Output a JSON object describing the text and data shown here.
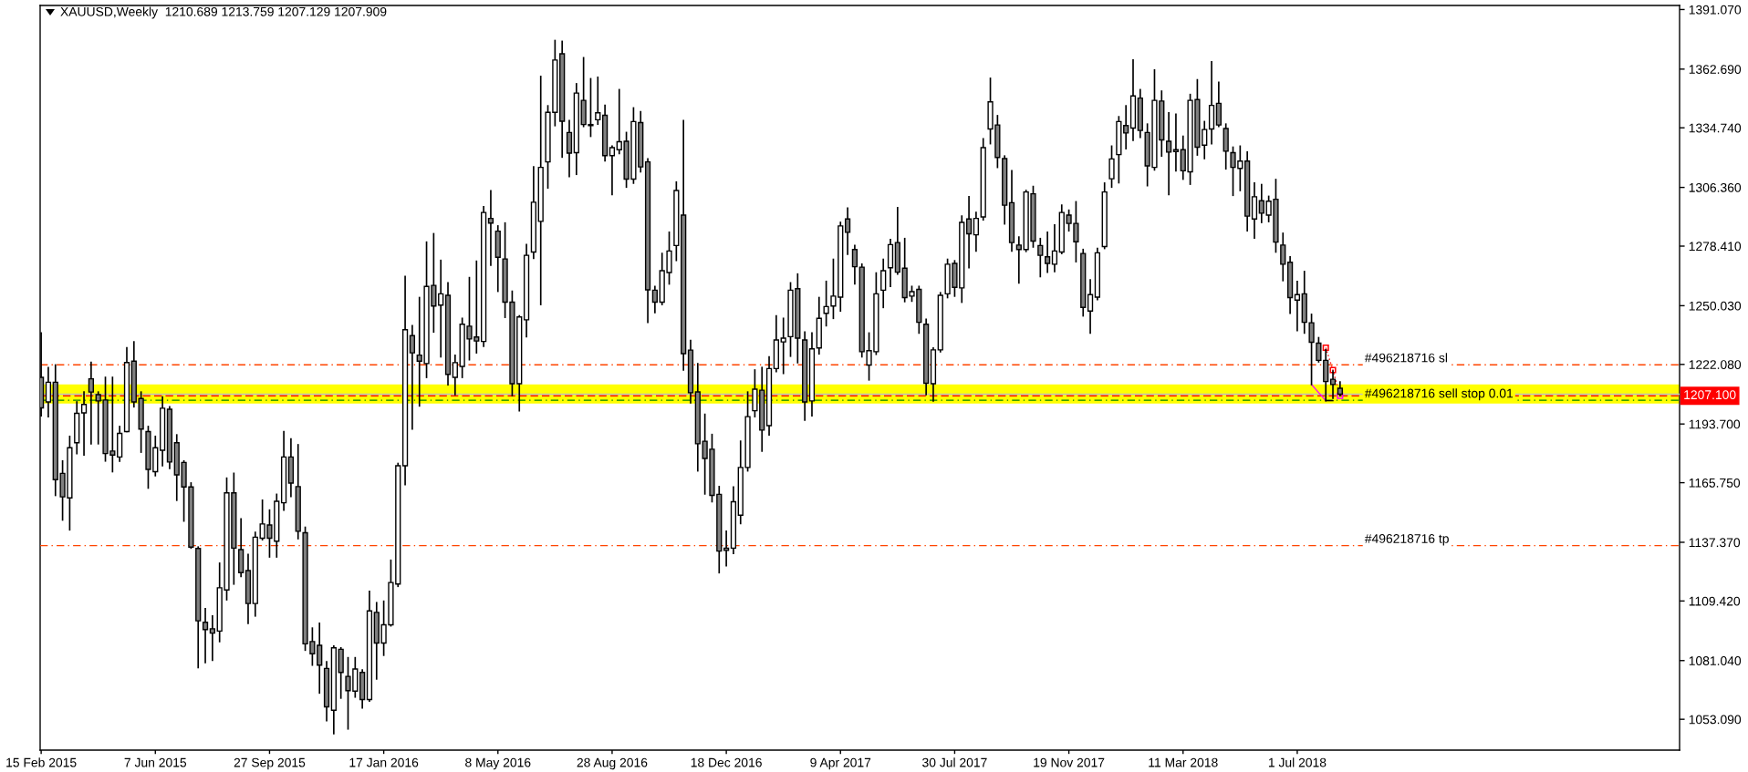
{
  "chart_data": {
    "type": "candlestick",
    "title": "XAUUSD,Weekly  1210.689 1213.759 1207.129 1207.909",
    "x": [
      "2015-02-15",
      "2015-02-22",
      "2015-03-01",
      "2015-03-08",
      "2015-03-15",
      "2015-03-22",
      "2015-03-29",
      "2015-04-05",
      "2015-04-12",
      "2015-04-19",
      "2015-04-26",
      "2015-05-03",
      "2015-05-10",
      "2015-05-17",
      "2015-05-24",
      "2015-05-31",
      "2015-06-07",
      "2015-06-14",
      "2015-06-21",
      "2015-06-28",
      "2015-07-05",
      "2015-07-12",
      "2015-07-19",
      "2015-07-26",
      "2015-08-02",
      "2015-08-09",
      "2015-08-16",
      "2015-08-23",
      "2015-08-30",
      "2015-09-06",
      "2015-09-13",
      "2015-09-20",
      "2015-09-27",
      "2015-10-04",
      "2015-10-11",
      "2015-10-18",
      "2015-10-25",
      "2015-11-01",
      "2015-11-08",
      "2015-11-15",
      "2015-11-22",
      "2015-11-29",
      "2015-12-06",
      "2015-12-13",
      "2015-12-20",
      "2015-12-27",
      "2016-01-03",
      "2016-01-10",
      "2016-01-17",
      "2016-01-24",
      "2016-01-31",
      "2016-02-07",
      "2016-02-14",
      "2016-02-21",
      "2016-02-28",
      "2016-03-06",
      "2016-03-13",
      "2016-03-20",
      "2016-03-27",
      "2016-04-03",
      "2016-04-10",
      "2016-04-17",
      "2016-04-24",
      "2016-05-01",
      "2016-05-08",
      "2016-05-15",
      "2016-05-22",
      "2016-05-29",
      "2016-06-05",
      "2016-06-12",
      "2016-06-19",
      "2016-06-26",
      "2016-07-03",
      "2016-07-10",
      "2016-07-17",
      "2016-07-24",
      "2016-07-31",
      "2016-08-07",
      "2016-08-14",
      "2016-08-21",
      "2016-08-28",
      "2016-09-04",
      "2016-09-11",
      "2016-09-18",
      "2016-09-25",
      "2016-10-02",
      "2016-10-09",
      "2016-10-16",
      "2016-10-23",
      "2016-10-30",
      "2016-11-06",
      "2016-11-13",
      "2016-11-20",
      "2016-11-27",
      "2016-12-04",
      "2016-12-11",
      "2016-12-18",
      "2016-12-25",
      "2017-01-01",
      "2017-01-08",
      "2017-01-15",
      "2017-01-22",
      "2017-01-29",
      "2017-02-05",
      "2017-02-12",
      "2017-02-19",
      "2017-02-26",
      "2017-03-05",
      "2017-03-12",
      "2017-03-19",
      "2017-03-26",
      "2017-04-02",
      "2017-04-09",
      "2017-04-16",
      "2017-04-23",
      "2017-04-30",
      "2017-05-07",
      "2017-05-14",
      "2017-05-21",
      "2017-05-28",
      "2017-06-04",
      "2017-06-11",
      "2017-06-18",
      "2017-06-25",
      "2017-07-02",
      "2017-07-09",
      "2017-07-16",
      "2017-07-23",
      "2017-07-30",
      "2017-08-06",
      "2017-08-13",
      "2017-08-20",
      "2017-08-27",
      "2017-09-03",
      "2017-09-10",
      "2017-09-17",
      "2017-09-24",
      "2017-10-01",
      "2017-10-08",
      "2017-10-15",
      "2017-10-22",
      "2017-10-29",
      "2017-11-05",
      "2017-11-12",
      "2017-11-19",
      "2017-11-26",
      "2017-12-03",
      "2017-12-10",
      "2017-12-17",
      "2017-12-24",
      "2017-12-31",
      "2018-01-07",
      "2018-01-14",
      "2018-01-21",
      "2018-01-28",
      "2018-02-04",
      "2018-02-11",
      "2018-02-18",
      "2018-02-25",
      "2018-03-04",
      "2018-03-11",
      "2018-03-18",
      "2018-03-25",
      "2018-04-01",
      "2018-04-08",
      "2018-04-15",
      "2018-04-22",
      "2018-04-29",
      "2018-05-06",
      "2018-05-13",
      "2018-05-20",
      "2018-05-27",
      "2018-06-03",
      "2018-06-10",
      "2018-06-17",
      "2018-06-24",
      "2018-07-01",
      "2018-07-08",
      "2018-07-15",
      "2018-07-22",
      "2018-07-29",
      "2018-08-05",
      "2018-08-12"
    ],
    "ohlc": [
      [
        1215.9,
        1237.0,
        1197.6,
        1201.4
      ],
      [
        1204.2,
        1220.6,
        1197.2,
        1213.6
      ],
      [
        1213.6,
        1221.8,
        1159.7,
        1167.2
      ],
      [
        1170.2,
        1176.1,
        1148.0,
        1159.0
      ],
      [
        1158.5,
        1187.8,
        1143.3,
        1182.4
      ],
      [
        1184.8,
        1204.2,
        1179.6,
        1198.8
      ],
      [
        1199.0,
        1208.9,
        1178.9,
        1203.0
      ],
      [
        1215.2,
        1223.0,
        1184.3,
        1208.9
      ],
      [
        1207.7,
        1208.9,
        1184.3,
        1204.7
      ],
      [
        1205.1,
        1215.9,
        1176.1,
        1179.6
      ],
      [
        1180.8,
        1215.9,
        1171.0,
        1178.9
      ],
      [
        1178.0,
        1192.5,
        1176.0,
        1189.2
      ],
      [
        1190.1,
        1230.0,
        1190.1,
        1223.0
      ],
      [
        1223.6,
        1232.8,
        1201.9,
        1204.2
      ],
      [
        1205.8,
        1208.9,
        1180.3,
        1191.3
      ],
      [
        1190.1,
        1192.5,
        1163.2,
        1172.1
      ],
      [
        1171.0,
        1187.8,
        1169.1,
        1182.4
      ],
      [
        1181.2,
        1206.5,
        1173.8,
        1201.2
      ],
      [
        1200.7,
        1201.9,
        1172.6,
        1175.6
      ],
      [
        1184.8,
        1188.5,
        1157.4,
        1169.5
      ],
      [
        1175.4,
        1176.1,
        1147.5,
        1163.7
      ],
      [
        1163.7,
        1165.6,
        1134.6,
        1135.1
      ],
      [
        1134.4,
        1135.1,
        1077.7,
        1100.0
      ],
      [
        1099.3,
        1105.8,
        1080.1,
        1095.8
      ],
      [
        1096.2,
        1102.3,
        1081.2,
        1094.1
      ],
      [
        1095.1,
        1127.4,
        1090.1,
        1115.7
      ],
      [
        1114.7,
        1167.9,
        1110.0,
        1160.9
      ],
      [
        1160.9,
        1170.2,
        1117.5,
        1134.6
      ],
      [
        1133.9,
        1148.5,
        1121.1,
        1122.9
      ],
      [
        1123.9,
        1131.6,
        1098.8,
        1108.2
      ],
      [
        1108.2,
        1142.1,
        1102.3,
        1139.8
      ],
      [
        1139.3,
        1157.4,
        1138.6,
        1146.1
      ],
      [
        1145.6,
        1152.7,
        1130.4,
        1139.3
      ],
      [
        1137.9,
        1160.2,
        1130.4,
        1156.9
      ],
      [
        1156.2,
        1190.1,
        1152.7,
        1178.0
      ],
      [
        1178.0,
        1186.6,
        1159.2,
        1165.6
      ],
      [
        1163.9,
        1183.8,
        1139.1,
        1142.6
      ],
      [
        1141.9,
        1144.5,
        1086.0,
        1089.0
      ],
      [
        1090.1,
        1096.5,
        1078.9,
        1084.3
      ],
      [
        1088.3,
        1098.8,
        1065.6,
        1078.9
      ],
      [
        1077.3,
        1080.5,
        1052.4,
        1059.0
      ],
      [
        1057.4,
        1088.0,
        1046.3,
        1087.1
      ],
      [
        1086.4,
        1087.1,
        1063.2,
        1075.4
      ],
      [
        1073.5,
        1082.4,
        1048.5,
        1066.7
      ],
      [
        1066.5,
        1082.4,
        1063.7,
        1077.0
      ],
      [
        1075.4,
        1076.6,
        1058.5,
        1062.5
      ],
      [
        1062.5,
        1114.0,
        1061.8,
        1104.7
      ],
      [
        1104.0,
        1108.6,
        1072.3,
        1089.4
      ],
      [
        1089.4,
        1109.3,
        1083.6,
        1098.1
      ],
      [
        1098.1,
        1128.8,
        1097.6,
        1118.2
      ],
      [
        1117.5,
        1174.9,
        1116.4,
        1173.8
      ],
      [
        1173.8,
        1263.9,
        1164.8,
        1238.6
      ],
      [
        1235.8,
        1240.5,
        1191.3,
        1227.6
      ],
      [
        1226.5,
        1253.9,
        1202.3,
        1223.6
      ],
      [
        1222.5,
        1280.3,
        1215.9,
        1259.2
      ],
      [
        1259.7,
        1284.3,
        1237.5,
        1249.9
      ],
      [
        1250.3,
        1271.6,
        1225.7,
        1255.7
      ],
      [
        1255.0,
        1260.9,
        1212.4,
        1217.3
      ],
      [
        1215.9,
        1226.4,
        1207.7,
        1222.9
      ],
      [
        1221.1,
        1244.0,
        1215.9,
        1241.2
      ],
      [
        1240.3,
        1263.4,
        1224.3,
        1234.2
      ],
      [
        1235.1,
        1271.2,
        1227.6,
        1233.2
      ],
      [
        1233.0,
        1297.2,
        1230.7,
        1294.4
      ],
      [
        1291.6,
        1304.7,
        1269.3,
        1289.4
      ],
      [
        1285.5,
        1288.0,
        1256.9,
        1273.1
      ],
      [
        1272.3,
        1289.4,
        1244.5,
        1251.7
      ],
      [
        1251.7,
        1256.9,
        1207.2,
        1212.9
      ],
      [
        1212.9,
        1245.2,
        1200.0,
        1244.7
      ],
      [
        1243.3,
        1279.1,
        1235.3,
        1274.0
      ],
      [
        1275.6,
        1316.1,
        1272.6,
        1299.3
      ],
      [
        1290.2,
        1359.2,
        1250.6,
        1315.9
      ],
      [
        1318.5,
        1345.2,
        1306.1,
        1342.1
      ],
      [
        1342.1,
        1376.3,
        1335.8,
        1367.0
      ],
      [
        1370.0,
        1375.9,
        1320.8,
        1337.9
      ],
      [
        1332.5,
        1338.2,
        1311.5,
        1322.7
      ],
      [
        1322.9,
        1355.7,
        1312.6,
        1351.3
      ],
      [
        1347.8,
        1368.1,
        1335.4,
        1336.3
      ],
      [
        1336.3,
        1358.1,
        1330.7,
        1335.8
      ],
      [
        1338.6,
        1358.8,
        1336.5,
        1341.9
      ],
      [
        1340.7,
        1345.4,
        1319.0,
        1321.5
      ],
      [
        1321.5,
        1326.0,
        1303.0,
        1325.3
      ],
      [
        1324.3,
        1352.9,
        1322.5,
        1328.1
      ],
      [
        1328.3,
        1332.5,
        1306.5,
        1310.3
      ],
      [
        1310.3,
        1344.2,
        1308.4,
        1337.7
      ],
      [
        1337.2,
        1342.4,
        1313.8,
        1316.1
      ],
      [
        1318.5,
        1319.9,
        1242.1,
        1257.6
      ],
      [
        1257.4,
        1259.2,
        1246.8,
        1251.7
      ],
      [
        1251.7,
        1274.9,
        1250.6,
        1266.7
      ],
      [
        1265.8,
        1285.0,
        1260.4,
        1276.1
      ],
      [
        1278.7,
        1308.9,
        1271.6,
        1304.9
      ],
      [
        1293.2,
        1338.2,
        1219.4,
        1227.2
      ],
      [
        1228.9,
        1233.5,
        1203.8,
        1208.6
      ],
      [
        1209.0,
        1222.4,
        1171.4,
        1184.3
      ],
      [
        1185.5,
        1198.3,
        1160.4,
        1177.3
      ],
      [
        1181.7,
        1188.7,
        1156.7,
        1159.7
      ],
      [
        1160.2,
        1163.9,
        1122.9,
        1133.2
      ],
      [
        1134.6,
        1142.6,
        1126.2,
        1133.5
      ],
      [
        1134.6,
        1163.7,
        1132.1,
        1156.7
      ],
      [
        1150.3,
        1185.5,
        1146.3,
        1173.0
      ],
      [
        1173.0,
        1208.9,
        1171.4,
        1197.2
      ],
      [
        1200.0,
        1219.4,
        1197.2,
        1210.3
      ],
      [
        1209.8,
        1220.6,
        1180.8,
        1190.8
      ],
      [
        1192.9,
        1225.7,
        1188.5,
        1220.1
      ],
      [
        1220.1,
        1245.2,
        1218.7,
        1233.7
      ],
      [
        1232.8,
        1244.0,
        1217.8,
        1234.6
      ],
      [
        1235.3,
        1260.9,
        1226.0,
        1257.4
      ],
      [
        1258.1,
        1265.1,
        1222.9,
        1234.6
      ],
      [
        1233.7,
        1237.5,
        1195.5,
        1204.2
      ],
      [
        1204.7,
        1237.0,
        1197.6,
        1229.5
      ],
      [
        1229.9,
        1253.9,
        1227.1,
        1244.0
      ],
      [
        1246.4,
        1261.6,
        1240.5,
        1249.6
      ],
      [
        1249.9,
        1272.1,
        1244.0,
        1254.6
      ],
      [
        1254.1,
        1289.7,
        1247.5,
        1288.0
      ],
      [
        1291.3,
        1296.5,
        1274.5,
        1285.0
      ],
      [
        1276.8,
        1278.7,
        1260.4,
        1268.6
      ],
      [
        1268.4,
        1269.8,
        1225.7,
        1228.1
      ],
      [
        1221.8,
        1237.0,
        1214.7,
        1228.6
      ],
      [
        1228.1,
        1265.6,
        1226.9,
        1255.7
      ],
      [
        1257.4,
        1272.1,
        1249.2,
        1266.7
      ],
      [
        1268.1,
        1281.5,
        1259.2,
        1279.1
      ],
      [
        1280.1,
        1296.7,
        1265.1,
        1266.0
      ],
      [
        1267.9,
        1282.0,
        1252.0,
        1253.9
      ],
      [
        1254.6,
        1259.2,
        1252.2,
        1256.7
      ],
      [
        1257.8,
        1259.2,
        1237.0,
        1242.1
      ],
      [
        1241.2,
        1243.5,
        1207.7,
        1213.1
      ],
      [
        1212.9,
        1229.9,
        1204.7,
        1229.0
      ],
      [
        1229.0,
        1256.2,
        1228.1,
        1255.0
      ],
      [
        1255.7,
        1272.1,
        1253.9,
        1269.8
      ],
      [
        1270.2,
        1271.4,
        1254.6,
        1258.8
      ],
      [
        1258.5,
        1292.7,
        1251.7,
        1289.7
      ],
      [
        1291.3,
        1301.9,
        1268.1,
        1284.3
      ],
      [
        1283.8,
        1294.4,
        1276.1,
        1291.6
      ],
      [
        1292.3,
        1329.5,
        1290.9,
        1325.3
      ],
      [
        1334.2,
        1358.3,
        1327.2,
        1347.1
      ],
      [
        1336.1,
        1340.5,
        1315.9,
        1320.6
      ],
      [
        1320.1,
        1321.3,
        1289.0,
        1297.9
      ],
      [
        1299.1,
        1314.3,
        1276.1,
        1280.1
      ],
      [
        1278.9,
        1282.7,
        1260.9,
        1276.8
      ],
      [
        1276.8,
        1304.9,
        1275.9,
        1304.2
      ],
      [
        1303.3,
        1306.8,
        1278.0,
        1280.8
      ],
      [
        1278.7,
        1282.0,
        1263.9,
        1274.0
      ],
      [
        1273.3,
        1285.0,
        1266.0,
        1270.2
      ],
      [
        1269.8,
        1288.5,
        1266.3,
        1276.1
      ],
      [
        1275.6,
        1297.9,
        1274.9,
        1294.4
      ],
      [
        1293.2,
        1295.5,
        1285.7,
        1289.2
      ],
      [
        1289.2,
        1299.5,
        1271.0,
        1280.5
      ],
      [
        1274.9,
        1276.8,
        1245.2,
        1249.2
      ],
      [
        1247.5,
        1262.3,
        1237.0,
        1255.3
      ],
      [
        1254.1,
        1277.3,
        1252.9,
        1275.2
      ],
      [
        1278.2,
        1308.4,
        1277.3,
        1304.2
      ],
      [
        1310.5,
        1326.0,
        1306.5,
        1319.9
      ],
      [
        1322.0,
        1340.0,
        1308.6,
        1337.7
      ],
      [
        1335.8,
        1345.2,
        1324.8,
        1332.3
      ],
      [
        1334.6,
        1367.0,
        1328.8,
        1349.9
      ],
      [
        1348.9,
        1352.9,
        1330.2,
        1333.5
      ],
      [
        1332.5,
        1336.5,
        1307.2,
        1316.6
      ],
      [
        1315.9,
        1362.3,
        1314.7,
        1347.8
      ],
      [
        1347.5,
        1352.2,
        1321.3,
        1329.0
      ],
      [
        1328.3,
        1341.9,
        1303.0,
        1323.2
      ],
      [
        1324.3,
        1341.2,
        1314.3,
        1323.4
      ],
      [
        1324.3,
        1330.7,
        1310.3,
        1314.3
      ],
      [
        1313.8,
        1350.6,
        1307.9,
        1347.8
      ],
      [
        1348.2,
        1357.6,
        1321.8,
        1325.5
      ],
      [
        1326.5,
        1337.7,
        1320.1,
        1333.9
      ],
      [
        1334.2,
        1366.2,
        1327.2,
        1345.4
      ],
      [
        1346.4,
        1356.4,
        1335.4,
        1336.1
      ],
      [
        1334.4,
        1336.5,
        1315.2,
        1323.6
      ],
      [
        1322.9,
        1325.5,
        1302.6,
        1315.9
      ],
      [
        1315.4,
        1326.0,
        1304.9,
        1318.9
      ],
      [
        1318.9,
        1323.2,
        1285.7,
        1292.7
      ],
      [
        1291.3,
        1308.4,
        1282.2,
        1301.9
      ],
      [
        1300.0,
        1307.7,
        1289.7,
        1294.1
      ],
      [
        1293.2,
        1302.1,
        1290.1,
        1299.8
      ],
      [
        1300.7,
        1310.1,
        1275.6,
        1280.3
      ],
      [
        1278.9,
        1284.5,
        1262.0,
        1269.8
      ],
      [
        1270.7,
        1273.3,
        1246.4,
        1253.9
      ],
      [
        1252.7,
        1261.6,
        1238.2,
        1255.3
      ],
      [
        1255.7,
        1266.3,
        1237.0,
        1242.1
      ],
      [
        1241.9,
        1245.9,
        1212.5,
        1232.6
      ],
      [
        1232.2,
        1234.8,
        1223.3,
        1224.0
      ],
      [
        1224.0,
        1229.0,
        1204.8,
        1213.9
      ],
      [
        1215.0,
        1218.9,
        1206.0,
        1212.5
      ],
      [
        1210.689,
        1213.759,
        1207.129,
        1207.909
      ]
    ],
    "colors": [
      "#808080",
      "#ffffff",
      "#808080",
      "#808080",
      "#ffffff",
      "#ffffff",
      "#ffffff",
      "#808080",
      "#808080",
      "#808080",
      "#808080",
      "#ffffff",
      "#ffffff",
      "#808080",
      "#808080",
      "#808080",
      "#ffffff",
      "#ffffff",
      "#808080",
      "#808080",
      "#808080",
      "#808080",
      "#808080",
      "#808080",
      "#808080",
      "#ffffff",
      "#ffffff",
      "#808080",
      "#808080",
      "#808080",
      "#ffffff",
      "#ffffff",
      "#808080",
      "#ffffff",
      "#ffffff",
      "#808080",
      "#808080",
      "#808080",
      "#808080",
      "#808080",
      "#808080",
      "#ffffff",
      "#808080",
      "#808080",
      "#ffffff",
      "#808080",
      "#ffffff",
      "#808080",
      "#ffffff",
      "#ffffff",
      "#ffffff",
      "#ffffff",
      "#808080",
      "#808080",
      "#ffffff",
      "#808080",
      "#ffffff",
      "#808080",
      "#ffffff",
      "#ffffff",
      "#808080",
      "#808080",
      "#ffffff",
      "#808080",
      "#808080",
      "#808080",
      "#808080",
      "#ffffff",
      "#ffffff",
      "#ffffff",
      "#ffffff",
      "#ffffff",
      "#ffffff",
      "#808080",
      "#808080",
      "#ffffff",
      "#808080",
      "#808080",
      "#ffffff",
      "#808080",
      "#ffffff",
      "#ffffff",
      "#808080",
      "#ffffff",
      "#808080",
      "#808080",
      "#808080",
      "#ffffff",
      "#ffffff",
      "#ffffff",
      "#808080",
      "#808080",
      "#808080",
      "#808080",
      "#808080",
      "#808080",
      "#808080",
      "#ffffff",
      "#ffffff",
      "#ffffff",
      "#ffffff",
      "#808080",
      "#ffffff",
      "#ffffff",
      "#ffffff",
      "#ffffff",
      "#808080",
      "#808080",
      "#ffffff",
      "#ffffff",
      "#ffffff",
      "#ffffff",
      "#ffffff",
      "#808080",
      "#808080",
      "#808080",
      "#ffffff",
      "#ffffff",
      "#ffffff",
      "#ffffff",
      "#808080",
      "#808080",
      "#ffffff",
      "#808080",
      "#808080",
      "#ffffff",
      "#ffffff",
      "#ffffff",
      "#808080",
      "#ffffff",
      "#808080",
      "#ffffff",
      "#ffffff",
      "#ffffff",
      "#808080",
      "#808080",
      "#808080",
      "#808080",
      "#ffffff",
      "#808080",
      "#808080",
      "#808080",
      "#ffffff",
      "#ffffff",
      "#808080",
      "#808080",
      "#808080",
      "#ffffff",
      "#ffffff",
      "#ffffff",
      "#ffffff",
      "#ffffff",
      "#808080",
      "#ffffff",
      "#808080",
      "#808080",
      "#ffffff",
      "#808080",
      "#808080",
      "#808080",
      "#808080",
      "#ffffff",
      "#808080",
      "#ffffff",
      "#ffffff",
      "#808080",
      "#808080",
      "#808080",
      "#ffffff",
      "#808080",
      "#ffffff",
      "#808080",
      "#ffffff",
      "#808080",
      "#808080",
      "#808080",
      "#ffffff",
      "#808080",
      "#808080",
      "#808080",
      "#808080",
      "#808080",
      "#808080"
    ],
    "color": "#000000",
    "xlim": [
      "2015-02-14",
      "2019-07-11"
    ],
    "xticks": [
      {
        "value": "2015-02-15",
        "label": "15 Feb 2015"
      },
      {
        "value": "2015-06-07",
        "label": "7 Jun 2015"
      },
      {
        "value": "2015-09-27",
        "label": "27 Sep 2015"
      },
      {
        "value": "2016-01-17",
        "label": "17 Jan 2016"
      },
      {
        "value": "2016-05-08",
        "label": "8 May 2016"
      },
      {
        "value": "2016-08-28",
        "label": "28 Aug 2016"
      },
      {
        "value": "2016-12-18",
        "label": "18 Dec 2016"
      },
      {
        "value": "2017-04-09",
        "label": "9 Apr 2017"
      },
      {
        "value": "2017-07-30",
        "label": "30 Jul 2017"
      },
      {
        "value": "2017-11-19",
        "label": "19 Nov 2017"
      },
      {
        "value": "2018-03-11",
        "label": "11 Mar 2018"
      },
      {
        "value": "2018-07-01",
        "label": "1 Jul 2018"
      }
    ],
    "ylim": [
      1038.4,
      1393.0
    ],
    "yticks": [
      {
        "value": 1391.07,
        "label": "1391.070"
      },
      {
        "value": 1362.69,
        "label": "1362.690"
      },
      {
        "value": 1334.74,
        "label": "1334.740"
      },
      {
        "value": 1306.36,
        "label": "1306.360"
      },
      {
        "value": 1278.41,
        "label": "1278.410"
      },
      {
        "value": 1250.03,
        "label": "1250.030"
      },
      {
        "value": 1222.08,
        "label": "1222.080"
      },
      {
        "value": 1193.7,
        "label": "1193.700"
      },
      {
        "value": 1165.75,
        "label": "1165.750"
      },
      {
        "value": 1137.37,
        "label": "1137.370"
      },
      {
        "value": 1109.42,
        "label": "1109.420"
      },
      {
        "value": 1081.04,
        "label": "1081.040"
      },
      {
        "value": 1053.09,
        "label": "1053.090"
      }
    ],
    "bands": [
      {
        "axis": "y",
        "from": 1203.4,
        "to": 1212.5,
        "color": "#ffff00"
      }
    ],
    "ref_lines": [
      {
        "axis": "y",
        "value": 1221.9,
        "label": "#496218716 sl",
        "color": "#ff4500",
        "line_style": "dashdot"
      },
      {
        "axis": "y",
        "value": 1205.0,
        "label": "#496218716 sell stop 0.01",
        "color": "#008000",
        "line_style": "dashdot"
      },
      {
        "axis": "y",
        "value": 1135.8,
        "label": "#496218716 tp",
        "color": "#ff4500",
        "line_style": "dashdot"
      },
      {
        "axis": "y",
        "value": 1207.1,
        "color": "#ff0000",
        "line_style": "dashed"
      },
      {
        "axis": "y",
        "value": 1207.909,
        "color": "#c0c0c0",
        "line_style": "solid"
      }
    ],
    "series": [
      {
        "type": "line",
        "x": [
          "2018-07-29",
          "2018-08-05",
          "2018-08-12"
        ],
        "values": [
          1230.0,
          1219.4,
          1207.1
        ],
        "color": "#ff0000",
        "colors": [
          "#ff0000",
          "#ff0000",
          "#ff00ff"
        ],
        "marker": "square",
        "line_style": "dotted"
      },
      {
        "type": "line",
        "x": [
          "2018-07-15",
          "2018-07-29"
        ],
        "values": [
          1212.5,
          1204.8
        ],
        "color": "#ff00ff",
        "line_style": "solid"
      },
      {
        "type": "line",
        "x": [
          "2018-07-29",
          "2018-08-05"
        ],
        "values": [
          1204.8,
          1204.8
        ],
        "color": "#000000",
        "line_style": "solid"
      }
    ],
    "annotations": [
      {
        "text": "1207.100",
        "x": "2019-07-11",
        "y": 1207.1
      }
    ]
  }
}
